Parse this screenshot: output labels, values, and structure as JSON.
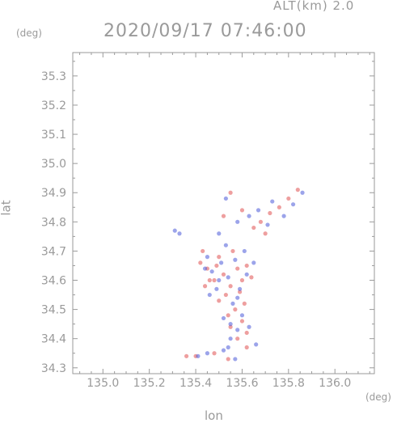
{
  "header": {
    "altitude": "ALT(km) 2.0",
    "datetime": "2020/09/17 07:46:00"
  },
  "axis_units": {
    "y": "(deg)",
    "x": "(deg)"
  },
  "chart_data": {
    "type": "scatter",
    "xlabel": "lon",
    "ylabel": "lat",
    "xlim": [
      134.87,
      136.17
    ],
    "ylim": [
      34.28,
      35.38
    ],
    "xticks": [
      "135.0",
      "135.2",
      "135.4",
      "135.6",
      "135.8",
      "136.0"
    ],
    "yticks": [
      "34.3",
      "34.4",
      "34.5",
      "34.6",
      "34.7",
      "34.8",
      "34.9",
      "35.0",
      "35.1",
      "35.2",
      "35.3"
    ],
    "grid": false,
    "colors": {
      "positive": "#e05050",
      "negative": "#4a5ad8",
      "axis": "#9a9a9a"
    },
    "series": [
      {
        "values": [
          [
            135.42,
            34.66
          ],
          [
            135.45,
            34.64
          ],
          [
            135.48,
            34.6
          ],
          [
            135.52,
            34.62
          ],
          [
            135.55,
            34.58
          ],
          [
            135.58,
            34.64
          ],
          [
            135.6,
            34.6
          ],
          [
            135.5,
            34.68
          ],
          [
            135.44,
            34.58
          ],
          [
            135.56,
            34.7
          ],
          [
            135.62,
            34.65
          ],
          [
            135.53,
            34.55
          ],
          [
            135.57,
            34.5
          ],
          [
            135.6,
            34.46
          ],
          [
            135.55,
            34.44
          ],
          [
            135.62,
            34.42
          ],
          [
            135.58,
            34.4
          ],
          [
            135.54,
            34.48
          ],
          [
            135.5,
            34.53
          ],
          [
            135.46,
            34.6
          ],
          [
            135.64,
            34.61
          ],
          [
            135.43,
            34.7
          ],
          [
            135.59,
            34.56
          ],
          [
            135.49,
            34.65
          ],
          [
            135.61,
            34.52
          ],
          [
            135.36,
            34.34
          ],
          [
            135.4,
            34.34
          ],
          [
            135.54,
            34.33
          ],
          [
            135.48,
            34.35
          ],
          [
            135.62,
            34.37
          ],
          [
            135.72,
            34.83
          ],
          [
            135.8,
            34.88
          ],
          [
            135.84,
            34.91
          ],
          [
            135.68,
            34.8
          ],
          [
            135.76,
            34.85
          ],
          [
            135.7,
            34.76
          ],
          [
            135.55,
            34.9
          ],
          [
            135.6,
            34.84
          ],
          [
            135.65,
            34.78
          ],
          [
            135.52,
            34.82
          ]
        ]
      },
      {
        "values": [
          [
            135.47,
            34.63
          ],
          [
            135.51,
            34.66
          ],
          [
            135.54,
            34.61
          ],
          [
            135.57,
            34.67
          ],
          [
            135.59,
            34.57
          ],
          [
            135.45,
            34.68
          ],
          [
            135.62,
            34.62
          ],
          [
            135.56,
            34.52
          ],
          [
            135.52,
            34.47
          ],
          [
            135.58,
            34.43
          ],
          [
            135.6,
            34.48
          ],
          [
            135.55,
            34.4
          ],
          [
            135.63,
            34.44
          ],
          [
            135.49,
            34.57
          ],
          [
            135.53,
            34.72
          ],
          [
            135.44,
            34.64
          ],
          [
            135.61,
            34.7
          ],
          [
            135.58,
            34.54
          ],
          [
            135.5,
            34.6
          ],
          [
            135.65,
            34.66
          ],
          [
            135.41,
            34.34
          ],
          [
            135.45,
            34.35
          ],
          [
            135.57,
            34.33
          ],
          [
            135.52,
            34.36
          ],
          [
            135.66,
            34.38
          ],
          [
            135.73,
            34.87
          ],
          [
            135.82,
            34.86
          ],
          [
            135.86,
            34.9
          ],
          [
            135.67,
            34.84
          ],
          [
            135.78,
            34.82
          ],
          [
            135.71,
            34.79
          ],
          [
            135.53,
            34.88
          ],
          [
            135.58,
            34.8
          ],
          [
            135.63,
            34.82
          ],
          [
            135.5,
            34.76
          ],
          [
            135.31,
            34.77
          ],
          [
            135.33,
            34.76
          ],
          [
            135.55,
            34.45
          ],
          [
            135.46,
            34.55
          ],
          [
            135.54,
            34.37
          ]
        ]
      }
    ]
  }
}
